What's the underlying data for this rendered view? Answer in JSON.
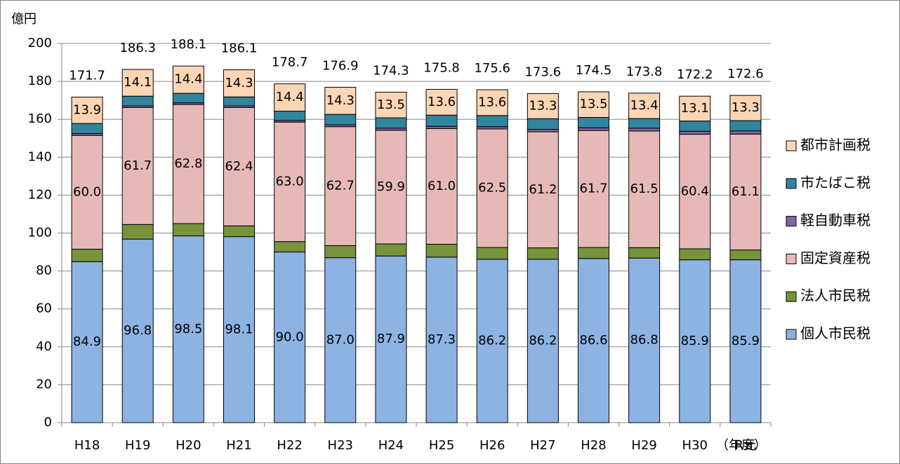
{
  "chart_data": {
    "type": "stacked_bar",
    "y_label": "億円",
    "x_label": "（年度）",
    "categories": [
      "H18",
      "H19",
      "H20",
      "H21",
      "H22",
      "H23",
      "H24",
      "H25",
      "H26",
      "H27",
      "H28",
      "H29",
      "H30",
      "R元"
    ],
    "series": [
      {
        "name": "個人市民税",
        "color": "#8db3e2",
        "values": [
          84.9,
          96.8,
          98.5,
          98.1,
          90.0,
          87.0,
          87.9,
          87.3,
          86.2,
          86.2,
          86.6,
          86.8,
          85.9,
          85.9
        ],
        "value_labels": [
          "84.9",
          "96.8",
          "98.5",
          "98.1",
          "90.0",
          "87.0",
          "87.9",
          "87.3",
          "86.2",
          "86.2",
          "86.6",
          "86.8",
          "85.9",
          "85.9"
        ]
      },
      {
        "name": "法人市民税",
        "color": "#77933c",
        "values": [
          6.6,
          7.7,
          6.5,
          5.7,
          5.5,
          6.4,
          6.4,
          6.8,
          6.2,
          6.0,
          5.8,
          5.5,
          5.8,
          5.2
        ]
      },
      {
        "name": "固定資産税",
        "color": "#e6b9b8",
        "values": [
          60.0,
          61.7,
          62.8,
          62.4,
          63.0,
          62.7,
          59.9,
          61.0,
          62.5,
          61.2,
          61.7,
          61.5,
          60.4,
          61.1
        ],
        "value_labels": [
          "60.0",
          "61.7",
          "62.8",
          "62.4",
          "63.0",
          "62.7",
          "59.9",
          "61.0",
          "62.5",
          "61.2",
          "61.7",
          "61.5",
          "60.4",
          "61.1"
        ]
      },
      {
        "name": "軽自動車税",
        "color": "#8064a2",
        "values": [
          1.0,
          0.9,
          0.9,
          0.9,
          0.9,
          1.0,
          1.1,
          1.2,
          1.2,
          1.3,
          1.4,
          1.5,
          1.6,
          1.7
        ]
      },
      {
        "name": "市たばこ税",
        "color": "#31859c",
        "values": [
          5.3,
          5.1,
          5.0,
          4.7,
          4.9,
          5.5,
          5.5,
          5.9,
          5.9,
          5.6,
          5.5,
          5.1,
          5.4,
          5.4
        ]
      },
      {
        "name": "都市計画税",
        "color": "#fcd5b5",
        "values": [
          13.9,
          14.1,
          14.4,
          14.3,
          14.4,
          14.3,
          13.5,
          13.6,
          13.6,
          13.3,
          13.5,
          13.4,
          13.1,
          13.3
        ],
        "value_labels": [
          "13.9",
          "14.1",
          "14.4",
          "14.3",
          "14.4",
          "14.3",
          "13.5",
          "13.6",
          "13.6",
          "13.3",
          "13.5",
          "13.4",
          "13.1",
          "13.3"
        ]
      }
    ],
    "totals": [
      171.7,
      186.3,
      188.1,
      186.1,
      178.7,
      176.9,
      174.3,
      175.8,
      175.6,
      173.6,
      174.5,
      173.8,
      172.2,
      172.6
    ],
    "ylim": [
      0,
      200
    ],
    "yticks": [
      0,
      20,
      40,
      60,
      80,
      100,
      120,
      140,
      160,
      180,
      200
    ],
    "grid": true,
    "legend": "right"
  }
}
